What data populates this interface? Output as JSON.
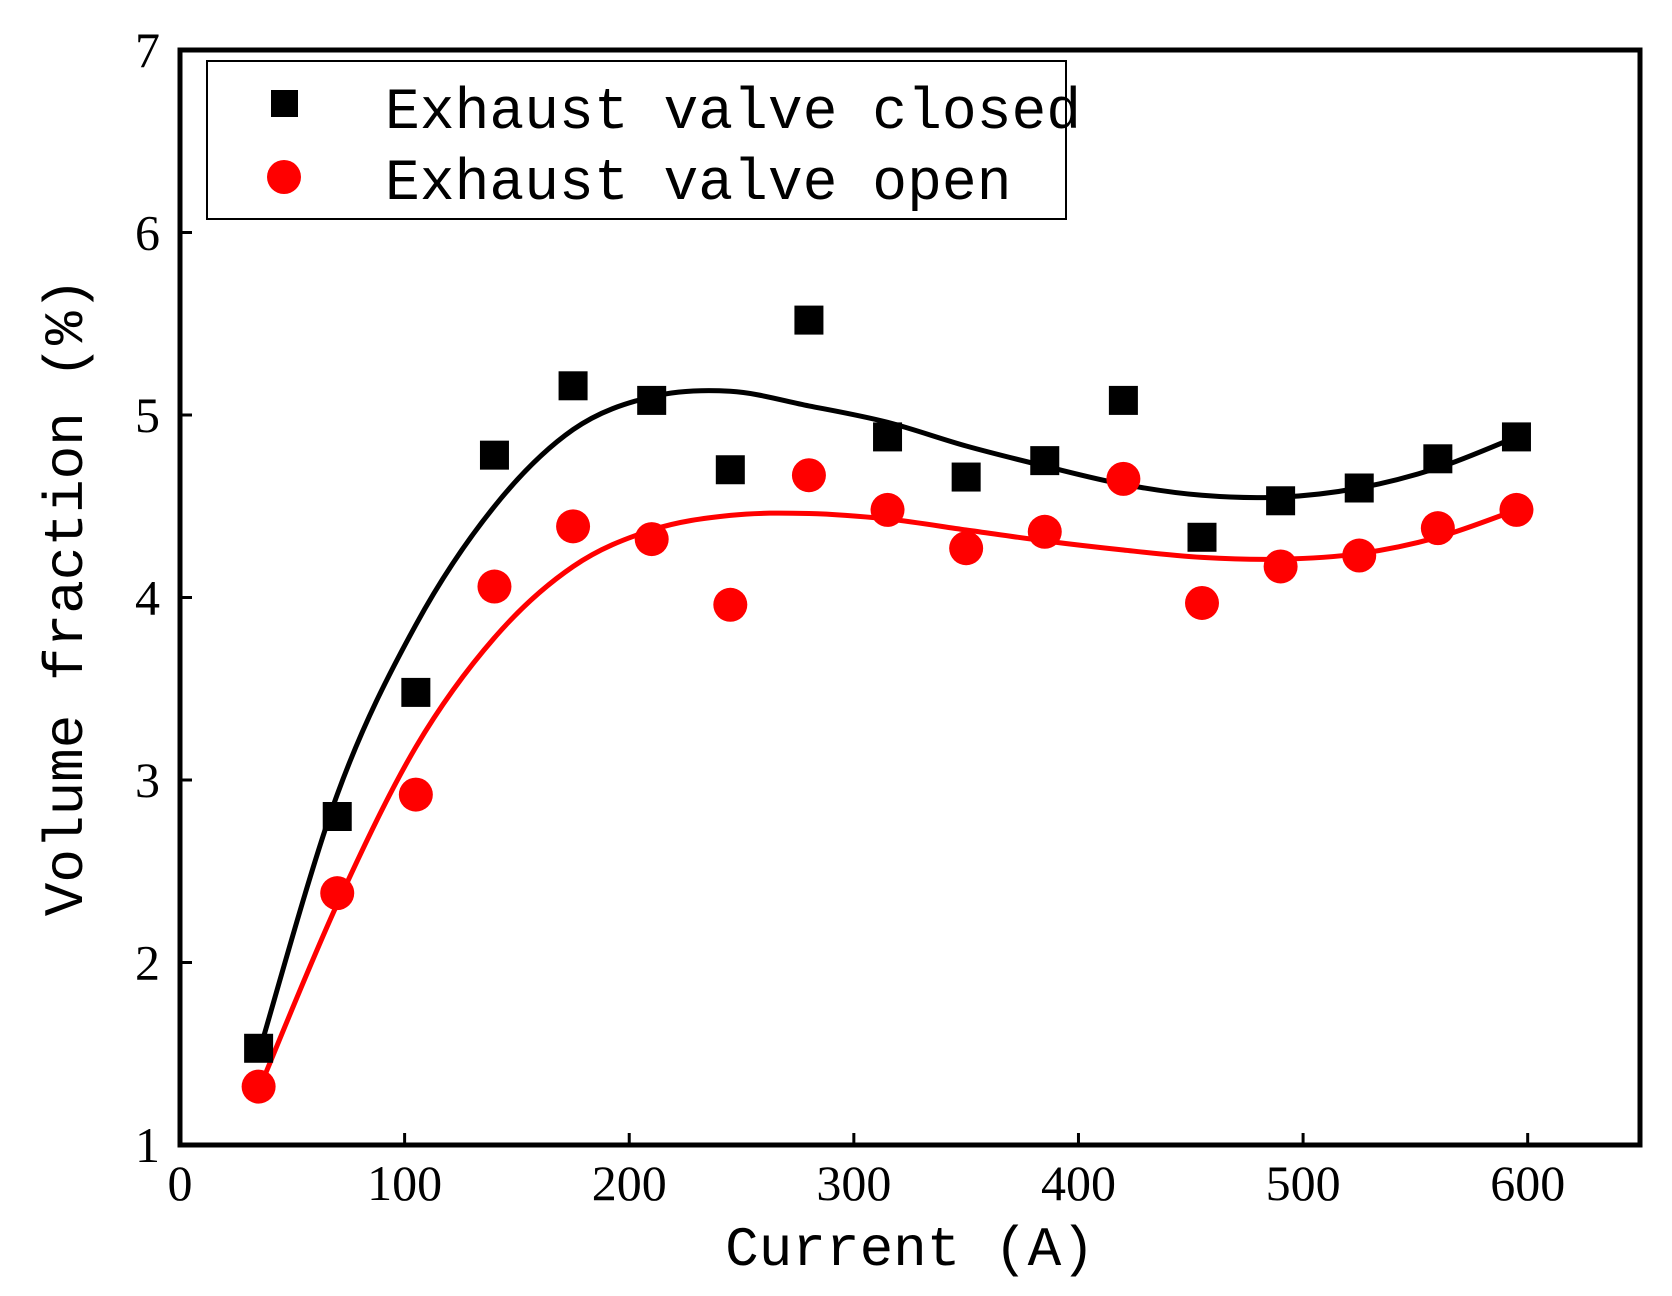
{
  "chart_data": {
    "type": "scatter",
    "title": "",
    "xlabel": "Current (A)",
    "ylabel": "Volume fraction (%)",
    "xlim": [
      0,
      650
    ],
    "ylim": [
      1,
      7
    ],
    "xticks": [
      0,
      100,
      200,
      300,
      400,
      500,
      600
    ],
    "xtick_labels": [
      "0",
      "100",
      "200",
      "300",
      "400",
      "500",
      "600"
    ],
    "yticks": [
      1,
      2,
      3,
      4,
      5,
      6,
      7
    ],
    "ytick_labels": [
      "1",
      "2",
      "3",
      "4",
      "5",
      "6",
      "7"
    ],
    "grid": false,
    "legend_position": "top-left",
    "x": [
      35,
      70,
      105,
      140,
      175,
      210,
      245,
      280,
      315,
      350,
      385,
      420,
      455,
      490,
      525,
      560,
      595
    ],
    "series": [
      {
        "name": "Exhaust valve closed",
        "marker": "square",
        "color": "#000000",
        "values": [
          1.53,
          2.8,
          3.48,
          4.78,
          5.16,
          5.08,
          4.7,
          5.52,
          4.88,
          4.66,
          4.75,
          5.08,
          4.33,
          4.53,
          4.6,
          4.76,
          4.88
        ],
        "fit_x": [
          35,
          70,
          105,
          140,
          175,
          210,
          245,
          280,
          315,
          350,
          385,
          420,
          455,
          490,
          525,
          560,
          595
        ],
        "fit_y": [
          1.5,
          2.92,
          3.85,
          4.5,
          4.92,
          5.1,
          5.13,
          5.05,
          4.96,
          4.83,
          4.72,
          4.62,
          4.56,
          4.55,
          4.6,
          4.71,
          4.88
        ]
      },
      {
        "name": "Exhaust valve open",
        "marker": "circle",
        "color": "#ff0000",
        "values": [
          1.32,
          2.38,
          2.92,
          4.06,
          4.39,
          4.32,
          3.96,
          4.67,
          4.48,
          4.27,
          4.36,
          4.65,
          3.97,
          4.17,
          4.23,
          4.38,
          4.48
        ],
        "fit_x": [
          35,
          70,
          105,
          140,
          175,
          210,
          245,
          280,
          315,
          350,
          385,
          420,
          455,
          490,
          525,
          560,
          595
        ],
        "fit_y": [
          1.3,
          2.32,
          3.18,
          3.78,
          4.17,
          4.37,
          4.45,
          4.46,
          4.43,
          4.37,
          4.31,
          4.26,
          4.22,
          4.21,
          4.24,
          4.33,
          4.48
        ]
      }
    ]
  }
}
